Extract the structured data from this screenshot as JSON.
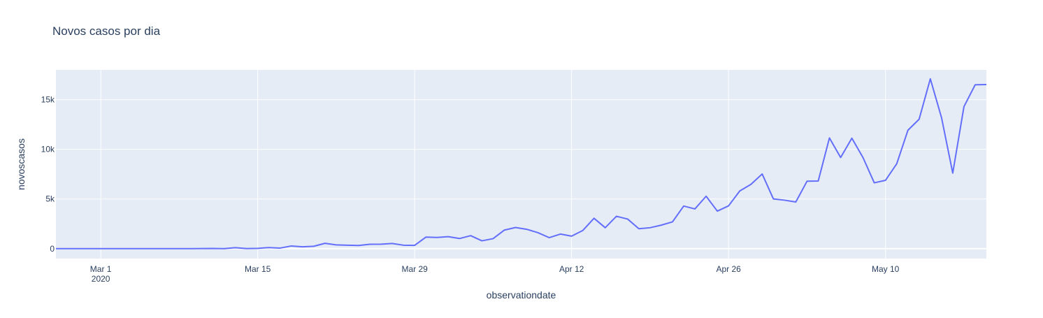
{
  "chart_data": {
    "type": "line",
    "title": "Novos casos por dia",
    "xlabel": "observationdate",
    "ylabel": "novoscasos",
    "x_range": [
      "2020-02-26",
      "2020-05-19"
    ],
    "ylim": [
      -1000,
      18000
    ],
    "x_ticks": [
      {
        "date": "2020-03-01",
        "label": "Mar 1",
        "sublabel": "2020"
      },
      {
        "date": "2020-03-15",
        "label": "Mar 15",
        "sublabel": ""
      },
      {
        "date": "2020-03-29",
        "label": "Mar 29",
        "sublabel": ""
      },
      {
        "date": "2020-04-12",
        "label": "Apr 12",
        "sublabel": ""
      },
      {
        "date": "2020-04-26",
        "label": "Apr 26",
        "sublabel": ""
      },
      {
        "date": "2020-05-10",
        "label": "May 10",
        "sublabel": ""
      }
    ],
    "y_ticks": [
      {
        "value": 0,
        "label": "0"
      },
      {
        "value": 5000,
        "label": "5k"
      },
      {
        "value": 10000,
        "label": "10k"
      },
      {
        "value": 15000,
        "label": "15k"
      }
    ],
    "grid": true,
    "colors": {
      "line": "#636efa",
      "plot_bg": "#e5ecf6",
      "grid": "#ffffff",
      "text": "#2a3f5f"
    },
    "series": [
      {
        "x": [
          "2020-02-26",
          "2020-02-27",
          "2020-02-28",
          "2020-02-29",
          "2020-03-01",
          "2020-03-02",
          "2020-03-03",
          "2020-03-04",
          "2020-03-05",
          "2020-03-06",
          "2020-03-07",
          "2020-03-08",
          "2020-03-09",
          "2020-03-10",
          "2020-03-11",
          "2020-03-12",
          "2020-03-13",
          "2020-03-14",
          "2020-03-15",
          "2020-03-16",
          "2020-03-17",
          "2020-03-18",
          "2020-03-19",
          "2020-03-20",
          "2020-03-21",
          "2020-03-22",
          "2020-03-23",
          "2020-03-24",
          "2020-03-25",
          "2020-03-26",
          "2020-03-27",
          "2020-03-28",
          "2020-03-29",
          "2020-03-30",
          "2020-03-31",
          "2020-04-01",
          "2020-04-02",
          "2020-04-03",
          "2020-04-04",
          "2020-04-05",
          "2020-04-06",
          "2020-04-07",
          "2020-04-08",
          "2020-04-09",
          "2020-04-10",
          "2020-04-11",
          "2020-04-12",
          "2020-04-13",
          "2020-04-14",
          "2020-04-15",
          "2020-04-16",
          "2020-04-17",
          "2020-04-18",
          "2020-04-19",
          "2020-04-20",
          "2020-04-21",
          "2020-04-22",
          "2020-04-23",
          "2020-04-24",
          "2020-04-25",
          "2020-04-26",
          "2020-04-27",
          "2020-04-28",
          "2020-04-29",
          "2020-04-30",
          "2020-05-01",
          "2020-05-02",
          "2020-05-03",
          "2020-05-04",
          "2020-05-05",
          "2020-05-06",
          "2020-05-07",
          "2020-05-08",
          "2020-05-09",
          "2020-05-10",
          "2020-05-11",
          "2020-05-12",
          "2020-05-13",
          "2020-05-14",
          "2020-05-15",
          "2020-05-16",
          "2020-05-17",
          "2020-05-18",
          "2020-05-19"
        ],
        "y": [
          1,
          0,
          0,
          1,
          0,
          0,
          0,
          1,
          4,
          5,
          6,
          6,
          5,
          9,
          18,
          0,
          100,
          12,
          30,
          110,
          60,
          270,
          190,
          240,
          540,
          380,
          350,
          320,
          440,
          450,
          520,
          350,
          330,
          1160,
          1130,
          1210,
          1020,
          1310,
          790,
          1010,
          1870,
          2130,
          1950,
          1610,
          1110,
          1470,
          1260,
          1830,
          3060,
          2110,
          3260,
          2980,
          2010,
          2110,
          2370,
          2700,
          4290,
          4000,
          5280,
          3780,
          4310,
          5810,
          6480,
          7520,
          5010,
          4880,
          4700,
          6790,
          6810,
          11150,
          9180,
          11120,
          9160,
          6630,
          6880,
          8540,
          11920,
          13030,
          17100,
          13190,
          7610,
          14300,
          16500,
          16520
        ]
      }
    ]
  }
}
